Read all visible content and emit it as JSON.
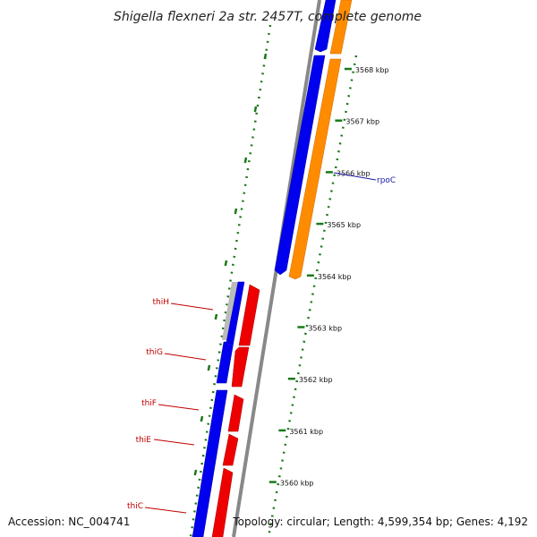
{
  "title": "Shigella flexneri 2a str. 2457T, complete genome",
  "footer": {
    "accession": "Accession: NC_004741",
    "stats": "Topology: circular; Length: 4,599,354 bp; Genes: 4,192"
  },
  "ticks": [
    {
      "label": "3568 kbp"
    },
    {
      "label": "3567 kbp"
    },
    {
      "label": "3566 kbp"
    },
    {
      "label": "3565 kbp"
    },
    {
      "label": "3564 kbp"
    },
    {
      "label": "3563 kbp"
    },
    {
      "label": "3562 kbp"
    },
    {
      "label": "3561 kbp"
    },
    {
      "label": "3560 kbp"
    }
  ],
  "genes": [
    {
      "name": "rpoC",
      "strand": "forward"
    },
    {
      "name": "thiH",
      "strand": "reverse"
    },
    {
      "name": "thiG",
      "strand": "reverse"
    },
    {
      "name": "thiF",
      "strand": "reverse"
    },
    {
      "name": "thiE",
      "strand": "reverse"
    },
    {
      "name": "thiC",
      "strand": "reverse"
    }
  ],
  "colors": {
    "forward_cds": "#0000ee",
    "forward_gene": "#ff8c00",
    "reverse_cds": "#0000ee",
    "reverse_gene": "#ee0000",
    "backbone": "#888888",
    "gc_skew": "#1a7a1a",
    "fwd_label": "#1a1aa8",
    "rev_label": "#c00000"
  }
}
